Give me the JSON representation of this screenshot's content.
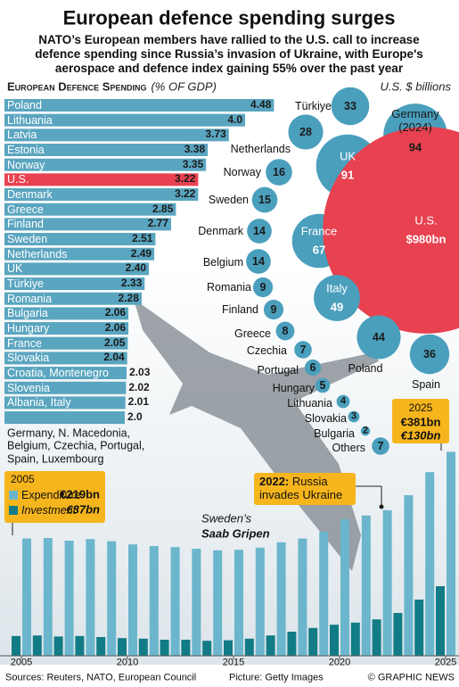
{
  "header": {
    "title": "European defence spending surges",
    "subtitle": [
      "NATO’s European members have rallied to the U.S. call to increase",
      "defence spending since Russia’s invasion of Ukraine, with Europe's",
      "aerospace and defence index gaining 55% over the past year"
    ]
  },
  "chart_data": [
    {
      "type": "hbar",
      "title": "European Defence Spending",
      "subtitle": "(% OF GDP)",
      "categories": [
        "Poland",
        "Lithuania",
        "Latvia",
        "Estonia",
        "Norway",
        "U.S.",
        "Denmark",
        "Greece",
        "Finland",
        "Sweden",
        "Netherlands",
        "UK",
        "Türkiye",
        "Romania",
        "Bulgaria",
        "Hungary",
        "France",
        "Slovakia",
        "Croatia, Montenegro",
        "Slovenia",
        "Albania, Italy",
        "Germany, N. Macedonia, Belgium, Czechia, Portugal, Spain, Luxembourg"
      ],
      "values": [
        4.48,
        4.0,
        3.73,
        3.38,
        3.35,
        3.22,
        3.22,
        2.85,
        2.77,
        2.51,
        2.49,
        2.4,
        2.33,
        2.28,
        2.06,
        2.06,
        2.05,
        2.04,
        2.03,
        2.02,
        2.01,
        2.0
      ],
      "value_labels": [
        "4.48",
        "4.0",
        "3.73",
        "3.38",
        "3.35",
        "3.22",
        "3.22",
        "2.85",
        "2.77",
        "2.51",
        "2.49",
        "2.40",
        "2.33",
        "2.28",
        "2.06",
        "2.06",
        "2.05",
        "2.04",
        "2.03",
        "2.02",
        "2.01",
        "2.0"
      ],
      "color": "#5aa5c0",
      "highlight": "U.S.",
      "highlight_color": "#e8414f"
    },
    {
      "type": "bubble",
      "title": "U.S. $ billions",
      "categories": [
        "Türkiye",
        "Germany (2024)",
        "Netherlands",
        "UK",
        "Norway",
        "Sweden",
        "Denmark",
        "France",
        "U.S.",
        "Belgium",
        "Romania",
        "Italy",
        "Finland",
        "Greece",
        "Czechia",
        "Portugal",
        "Hungary",
        "Lithuania",
        "Slovakia",
        "Bulgaria",
        "Others",
        "Poland",
        "Spain"
      ],
      "values": [
        33,
        94,
        28,
        91,
        16,
        15,
        14,
        67,
        980,
        14,
        9,
        49,
        9,
        8,
        7,
        6,
        5,
        4,
        3,
        2,
        7,
        44,
        36
      ],
      "value_labels": [
        "33",
        "94",
        "28",
        "91",
        "16",
        "15",
        "14",
        "67",
        "$980bn",
        "14",
        "9",
        "49",
        "9",
        "8",
        "7",
        "6",
        "5",
        "4",
        "3",
        "2",
        "7",
        "44",
        "36"
      ],
      "color": "#4a9fbd",
      "highlight": "U.S.",
      "highlight_color": "#e8414f"
    },
    {
      "type": "bar",
      "x": [
        2005,
        2006,
        2007,
        2008,
        2009,
        2010,
        2011,
        2012,
        2013,
        2014,
        2015,
        2016,
        2017,
        2018,
        2019,
        2020,
        2021,
        2022,
        2023,
        2024,
        2025
      ],
      "xticks": [
        2005,
        2010,
        2015,
        2020,
        2025
      ],
      "series": [
        {
          "name": "Investment",
          "color": "#127c86",
          "values": [
            37,
            38,
            36,
            37,
            35,
            33,
            32,
            30,
            30,
            28,
            29,
            32,
            38,
            45,
            52,
            58,
            62,
            68,
            80,
            105,
            130
          ]
        },
        {
          "name": "Expenditure",
          "color": "#6bb6cc",
          "values": [
            219,
            220,
            215,
            218,
            214,
            208,
            205,
            203,
            200,
            197,
            198,
            202,
            212,
            219,
            232,
            255,
            262,
            272,
            300,
            343,
            381
          ]
        }
      ],
      "annotations": [
        {
          "title": "2005",
          "expenditure": "€219bn",
          "investment": "€37bn"
        },
        {
          "title": "2025",
          "expenditure": "€381bn",
          "investment": "€130bn"
        },
        {
          "title": "2022:",
          "text": "Russia invades Ukraine"
        },
        {
          "text": "Sweden’s",
          "title": "Saab Gripen"
        }
      ]
    }
  ],
  "footer": {
    "sources": "Sources: Reuters, NATO, European Council",
    "picture": "Picture: Getty Images",
    "credit": "© GRAPHIC NEWS"
  }
}
